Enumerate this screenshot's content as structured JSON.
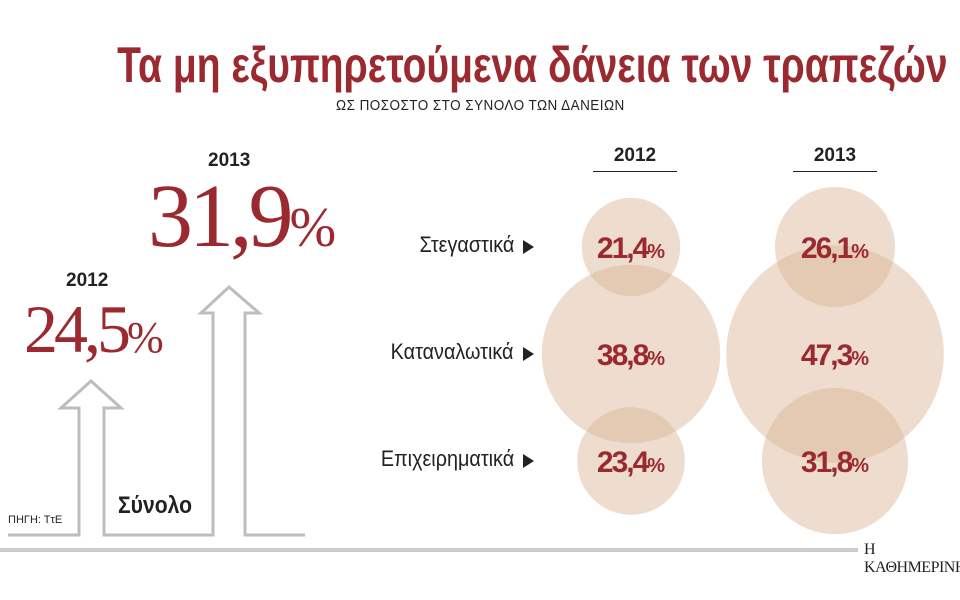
{
  "title": "Τα μη εξυπηρετούμενα δάνεια των τραπεζών",
  "subtitle": "ΩΣ ΠΟΣΟΣΤΟ ΣΤΟ ΣΥΝΟΛΟ ΤΩΝ ΔΑΝΕΙΩΝ",
  "source": "ΠΗΓΗ: ΤτΕ",
  "publisher": "Η ΚΑΘΗΜΕΡΙΝΗ",
  "colors": {
    "accent": "#9b2a30",
    "bubble": "#d9b493",
    "arrow": "#bdbdbd"
  },
  "total": {
    "label": "Σύνολο",
    "years": [
      {
        "year": "2012",
        "value": "24,5",
        "unit": "%"
      },
      {
        "year": "2013",
        "value": "31,9",
        "unit": "%"
      }
    ]
  },
  "chart_data": {
    "type": "bubble",
    "columns": [
      "2012",
      "2013"
    ],
    "categories": [
      "Στεγαστικά",
      "Καταναλωτικά",
      "Επιχειρηματικά"
    ],
    "series": [
      {
        "name": "2012",
        "values": [
          21.4,
          38.8,
          23.4
        ],
        "labels": [
          "21,4",
          "38,8",
          "23,4"
        ]
      },
      {
        "name": "2013",
        "values": [
          26.1,
          47.3,
          31.8
        ],
        "labels": [
          "26,1",
          "47,3",
          "31,8"
        ]
      }
    ],
    "unit": "%"
  }
}
